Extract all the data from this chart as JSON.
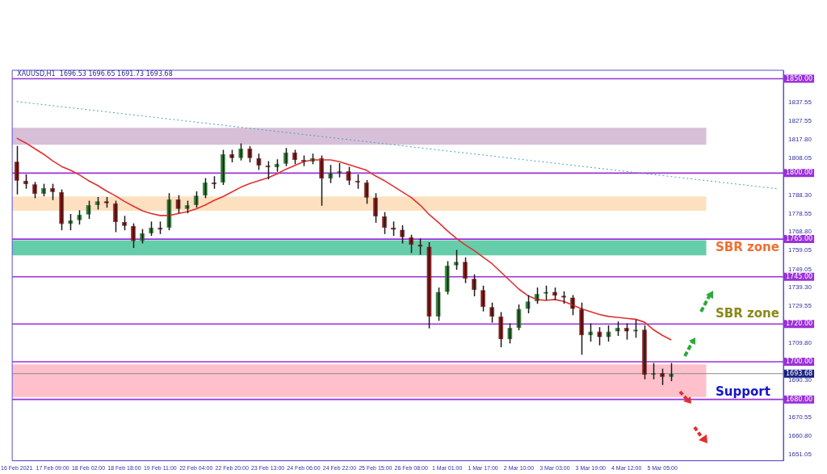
{
  "chart_data": {
    "type": "candlestick",
    "title": "XAUUSD,H1  1696.53 1696.65 1691.73 1693.68",
    "categories": [
      "16 Feb 2021",
      null,
      null,
      null,
      "17 Feb 09:00",
      null,
      null,
      null,
      "18 Feb 02:00",
      null,
      null,
      null,
      "18 Feb 18:00",
      null,
      null,
      null,
      "19 Feb 11:00",
      null,
      null,
      null,
      "22 Feb 04:00",
      null,
      null,
      null,
      "22 Feb 20:00",
      null,
      null,
      null,
      "23 Feb 13:00",
      null,
      null,
      null,
      "24 Feb 06:00",
      null,
      null,
      null,
      "24 Feb 22:00",
      null,
      null,
      null,
      "25 Feb 15:00",
      null,
      null,
      null,
      "26 Feb 08:00",
      null,
      null,
      null,
      "1 Mar 01:00",
      null,
      null,
      null,
      "1 Mar 17:00",
      null,
      null,
      null,
      "2 Mar 10:00",
      null,
      null,
      null,
      "3 Mar 03:00",
      null,
      null,
      null,
      "3 Mar 19:00",
      null,
      null,
      null,
      "4 Mar 12:00",
      null,
      null,
      null,
      "5 Mar 05:00",
      null,
      null,
      null,
      null,
      null,
      null,
      null,
      null,
      null,
      null,
      null,
      null,
      null
    ],
    "ohlc": [
      [
        1806,
        1814,
        1789,
        1796
      ],
      [
        1796,
        1799,
        1792,
        1794
      ],
      [
        1794,
        1795,
        1787,
        1789
      ],
      [
        1789,
        1794,
        1788,
        1792
      ],
      [
        1792,
        1794,
        1786,
        1790
      ],
      [
        1790,
        1791,
        1770,
        1773
      ],
      [
        1773,
        1778,
        1770,
        1775
      ],
      [
        1775,
        1780,
        1773,
        1778
      ],
      [
        1778,
        1785,
        1776,
        1783
      ],
      [
        1783,
        1787,
        1781,
        1785
      ],
      [
        1785,
        1787,
        1782,
        1784
      ],
      [
        1784,
        1785,
        1769,
        1774
      ],
      [
        1774,
        1777,
        1770,
        1772
      ],
      [
        1772,
        1773,
        1760.6,
        1764
      ],
      [
        1764,
        1770,
        1763,
        1768
      ],
      [
        1768,
        1774,
        1767,
        1771
      ],
      [
        1771,
        1774,
        1768,
        1770
      ],
      [
        1771,
        1789,
        1770,
        1786
      ],
      [
        1786,
        1788,
        1779,
        1781
      ],
      [
        1781,
        1785,
        1779,
        1783
      ],
      [
        1783,
        1790,
        1782,
        1788
      ],
      [
        1788,
        1797,
        1787,
        1795
      ],
      [
        1795,
        1798,
        1792,
        1794
      ],
      [
        1795,
        1812,
        1794,
        1810
      ],
      [
        1810,
        1812,
        1806,
        1808
      ],
      [
        1808,
        1815.4,
        1807,
        1813
      ],
      [
        1813,
        1814,
        1806,
        1808
      ],
      [
        1808,
        1810,
        1802,
        1804
      ],
      [
        1804,
        1806,
        1797,
        1803
      ],
      [
        1803,
        1807,
        1801,
        1805
      ],
      [
        1805,
        1813,
        1804,
        1811
      ],
      [
        1811,
        1812,
        1805,
        1807
      ],
      [
        1807,
        1809,
        1804,
        1806
      ],
      [
        1806,
        1810,
        1805,
        1808
      ],
      [
        1808,
        1809,
        1783,
        1797
      ],
      [
        1797,
        1804,
        1795,
        1800
      ],
      [
        1800,
        1805,
        1798,
        1801
      ],
      [
        1801,
        1803,
        1794,
        1796
      ],
      [
        1796,
        1799,
        1792,
        1795
      ],
      [
        1795,
        1796,
        1784,
        1787
      ],
      [
        1787,
        1789,
        1774,
        1777
      ],
      [
        1777,
        1779,
        1768,
        1771
      ],
      [
        1771,
        1774,
        1767,
        1770
      ],
      [
        1770,
        1772,
        1763,
        1766
      ],
      [
        1766,
        1767,
        1758,
        1762
      ],
      [
        1762,
        1765,
        1757,
        1761
      ],
      [
        1761,
        1763,
        1718,
        1724
      ],
      [
        1724,
        1739,
        1722,
        1737
      ],
      [
        1737,
        1753,
        1736,
        1751
      ],
      [
        1751,
        1759,
        1749,
        1753
      ],
      [
        1753,
        1755,
        1742,
        1744
      ],
      [
        1744,
        1746,
        1735,
        1738
      ],
      [
        1738,
        1740,
        1727,
        1729
      ],
      [
        1729,
        1731,
        1721,
        1724
      ],
      [
        1724,
        1726,
        1708,
        1712
      ],
      [
        1712,
        1720,
        1710,
        1718
      ],
      [
        1718,
        1730,
        1717,
        1728
      ],
      [
        1728,
        1735,
        1726,
        1732
      ],
      [
        1732,
        1739,
        1731,
        1736
      ],
      [
        1736,
        1740,
        1733,
        1737
      ],
      [
        1737,
        1739,
        1733,
        1735
      ],
      [
        1735,
        1737,
        1731,
        1734
      ],
      [
        1734,
        1735,
        1725,
        1728
      ],
      [
        1728,
        1731,
        1704,
        1714
      ],
      [
        1714,
        1720,
        1711,
        1716
      ],
      [
        1716,
        1718,
        1709,
        1713
      ],
      [
        1713,
        1719,
        1711,
        1716
      ],
      [
        1716,
        1721,
        1714,
        1718
      ],
      [
        1718,
        1720,
        1712,
        1716
      ],
      [
        1716,
        1722,
        1713,
        1717
      ],
      [
        1717,
        1719,
        1691,
        1693
      ],
      [
        1693,
        1699,
        1691,
        1694
      ],
      [
        1694,
        1696,
        1688,
        1692
      ],
      [
        1692,
        1699,
        1690,
        1693.68
      ],
      null,
      null,
      null,
      null,
      null,
      null,
      null,
      null,
      null,
      null,
      null,
      null
    ],
    "colors": [
      "#8b1a1a",
      "#8b1a1a",
      "#8b1a1a",
      "#2e7d32",
      "#8b1a1a",
      "#8b1a1a",
      "#2e7d32",
      "#2e7d32",
      "#2e7d32",
      "#2e7d32",
      "#8b1a1a",
      "#8b1a1a",
      "#8b1a1a",
      "#8b1a1a",
      "#2e7d32",
      "#2e7d32",
      "#8b1a1a",
      "#2e7d32",
      "#8b1a1a",
      "#2e7d32",
      "#2e7d32",
      "#2e7d32",
      "#8b1a1a",
      "#2e7d32",
      "#8b1a1a",
      "#2e7d32",
      "#8b1a1a",
      "#8b1a1a",
      "#8b1a1a",
      "#2e7d32",
      "#2e7d32",
      "#8b1a1a",
      "#8b1a1a",
      "#2e7d32",
      "#8b1a1a",
      "#2e7d32",
      "#2e7d32",
      "#8b1a1a",
      "#8b1a1a",
      "#8b1a1a",
      "#8b1a1a",
      "#8b1a1a",
      "#8b1a1a",
      "#8b1a1a",
      "#8b1a1a",
      "#8b1a1a",
      "#8b1a1a",
      "#2e7d32",
      "#2e7d32",
      "#2e7d32",
      "#8b1a1a",
      "#8b1a1a",
      "#8b1a1a",
      "#8b1a1a",
      "#8b1a1a",
      "#2e7d32",
      "#2e7d32",
      "#2e7d32",
      "#2e7d32",
      "#2e7d32",
      "#8b1a1a",
      "#8b1a1a",
      "#8b1a1a",
      "#8b1a1a",
      "#2e7d32",
      "#8b1a1a",
      "#2e7d32",
      "#2e7d32",
      "#8b1a1a",
      "#2e7d32",
      "#8b1a1a",
      "#2e7d32",
      "#8b1a1a",
      "#2e7d32",
      null,
      null,
      null,
      null,
      null,
      null,
      null,
      null,
      null,
      null,
      null,
      null
    ],
    "series": [
      {
        "type": "line",
        "color": "#e03030",
        "values": [
          1818.5,
          1816,
          1813,
          1810,
          1806.5,
          1803.5,
          1801.5,
          1799,
          1796,
          1793.5,
          1790.5,
          1788,
          1785,
          1782.5,
          1780,
          1778.5,
          1777.5,
          1777.5,
          1778.5,
          1779.5,
          1781,
          1783,
          1785.5,
          1787.5,
          1790,
          1792.5,
          1794.5,
          1796,
          1797.5,
          1799.5,
          1802,
          1804,
          1806,
          1807,
          1807,
          1807,
          1806,
          1804.5,
          1803,
          1801.5,
          1798.5,
          1796,
          1793,
          1790,
          1787,
          1783,
          1778,
          1774,
          1769.5,
          1765.5,
          1762,
          1759,
          1755.5,
          1752,
          1747.5,
          1743,
          1738.5,
          1735,
          1733,
          1732.5,
          1733,
          1732,
          1730,
          1728,
          1726.5,
          1725,
          1724,
          1723.5,
          1723,
          1722.5,
          1721,
          1717,
          1714,
          1711.5,
          null,
          null,
          null,
          null,
          null,
          null,
          null,
          null,
          null,
          null,
          null,
          null
        ]
      },
      {
        "type": "line",
        "color": "#4aa3b5",
        "line_style": "dotted",
        "values": [
          1837.9,
          null,
          null,
          null,
          null,
          null,
          null,
          null,
          null,
          null,
          null,
          null,
          null,
          null,
          null,
          null,
          null,
          null,
          null,
          null,
          null,
          null,
          null,
          null,
          null,
          null,
          null,
          null,
          null,
          null,
          null,
          null,
          null,
          null,
          null,
          null,
          null,
          null,
          null,
          null,
          null,
          null,
          null,
          null,
          null,
          null,
          null,
          null,
          null,
          null,
          null,
          null,
          null,
          null,
          null,
          null,
          null,
          null,
          null,
          null,
          null,
          null,
          null,
          null,
          null,
          null,
          null,
          null,
          null,
          null,
          null,
          null,
          null,
          null,
          null,
          null,
          null,
          null,
          null,
          null,
          null,
          null,
          null,
          null,
          null,
          1791.6
        ]
      }
    ],
    "ylim": [
      1647.5,
      1854.5
    ],
    "yticks": [
      {
        "value": 1651.05,
        "label": "1651.05"
      },
      {
        "value": 1660.8,
        "label": "1660.80"
      },
      {
        "value": 1670.55,
        "label": "1670.55"
      },
      {
        "value": 1690.3,
        "label": "1690.30"
      },
      {
        "value": 1709.8,
        "label": "1709.80"
      },
      {
        "value": 1729.55,
        "label": "1729.55"
      },
      {
        "value": 1739.3,
        "label": "1739.30"
      },
      {
        "value": 1749.05,
        "label": "1749.05"
      },
      {
        "value": 1759.05,
        "label": "1759.05"
      },
      {
        "value": 1768.8,
        "label": "1768.80"
      },
      {
        "value": 1778.55,
        "label": "1778.55"
      },
      {
        "value": 1788.3,
        "label": "1788.30"
      },
      {
        "value": 1808.05,
        "label": "1808.05"
      },
      {
        "value": 1817.8,
        "label": "1817.80"
      },
      {
        "value": 1827.55,
        "label": "1827.55"
      },
      {
        "value": 1837.55,
        "label": "1837.55"
      }
    ],
    "ref_lines": [
      {
        "axis": "y",
        "value": 1850,
        "label": "1850.00",
        "color": "#9b30d9"
      },
      {
        "axis": "y",
        "value": 1800,
        "label": "1800.00",
        "color": "#9b30d9"
      },
      {
        "axis": "y",
        "value": 1765,
        "label": "1765.00",
        "color": "#9b30d9"
      },
      {
        "axis": "y",
        "value": 1745,
        "label": "1745.00",
        "color": "#9b30d9"
      },
      {
        "axis": "y",
        "value": 1720,
        "label": "1720.00",
        "color": "#9b30d9"
      },
      {
        "axis": "y",
        "value": 1700,
        "label": "1700.00",
        "color": "#9b30d9"
      },
      {
        "axis": "y",
        "value": 1680,
        "label": "1680.00",
        "color": "#9b30d9"
      },
      {
        "axis": "y",
        "value": 1693.68,
        "label": "1693.68",
        "color": "#8c8c8c"
      }
    ],
    "bands": [
      {
        "axis": "y",
        "from": 1815,
        "to": 1824,
        "color": "#d8bfd8"
      },
      {
        "axis": "y",
        "from": 1780,
        "to": 1787.6,
        "color": "#fde0c0"
      },
      {
        "axis": "y",
        "from": 1756.4,
        "to": 1764.4,
        "color": "#66cdaa",
        "label": "SBR zone"
      },
      {
        "axis": "y",
        "from": 1681.3,
        "to": 1698.6,
        "color": "#ffc0cb",
        "label": "Support"
      }
    ],
    "annotations": [
      "SBR zone"
    ],
    "grid": false,
    "legend": false,
    "marker": "none"
  }
}
